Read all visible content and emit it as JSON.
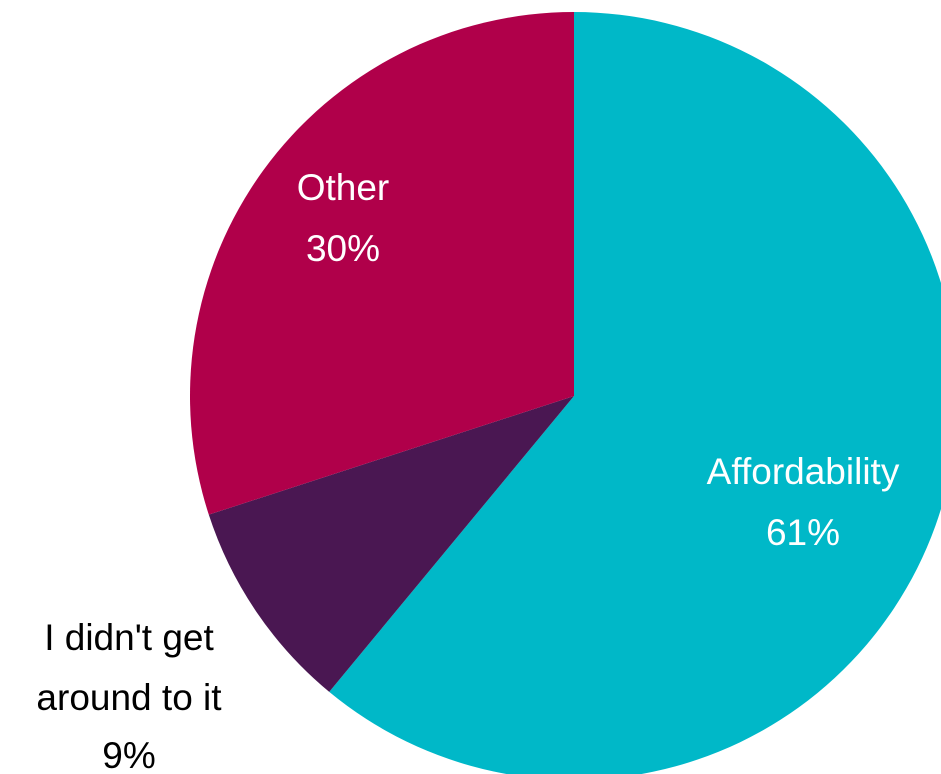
{
  "chart_data": {
    "type": "pie",
    "title": "",
    "start": "12 o'clock",
    "direction": "clockwise",
    "slices": [
      {
        "label": "Affordability",
        "value": 61,
        "value_label": "61%",
        "color": "#00B8C8",
        "label_color": "#ffffff"
      },
      {
        "label": "I didn't get around to it",
        "value": 9,
        "value_label": "9%",
        "color": "#4A1752",
        "label_color": "#000000",
        "label_lines": [
          "I didn't get",
          "around to it"
        ]
      },
      {
        "label": "Other",
        "value": 30,
        "value_label": "30%",
        "color": "#B0004A",
        "label_color": "#ffffff"
      }
    ]
  }
}
